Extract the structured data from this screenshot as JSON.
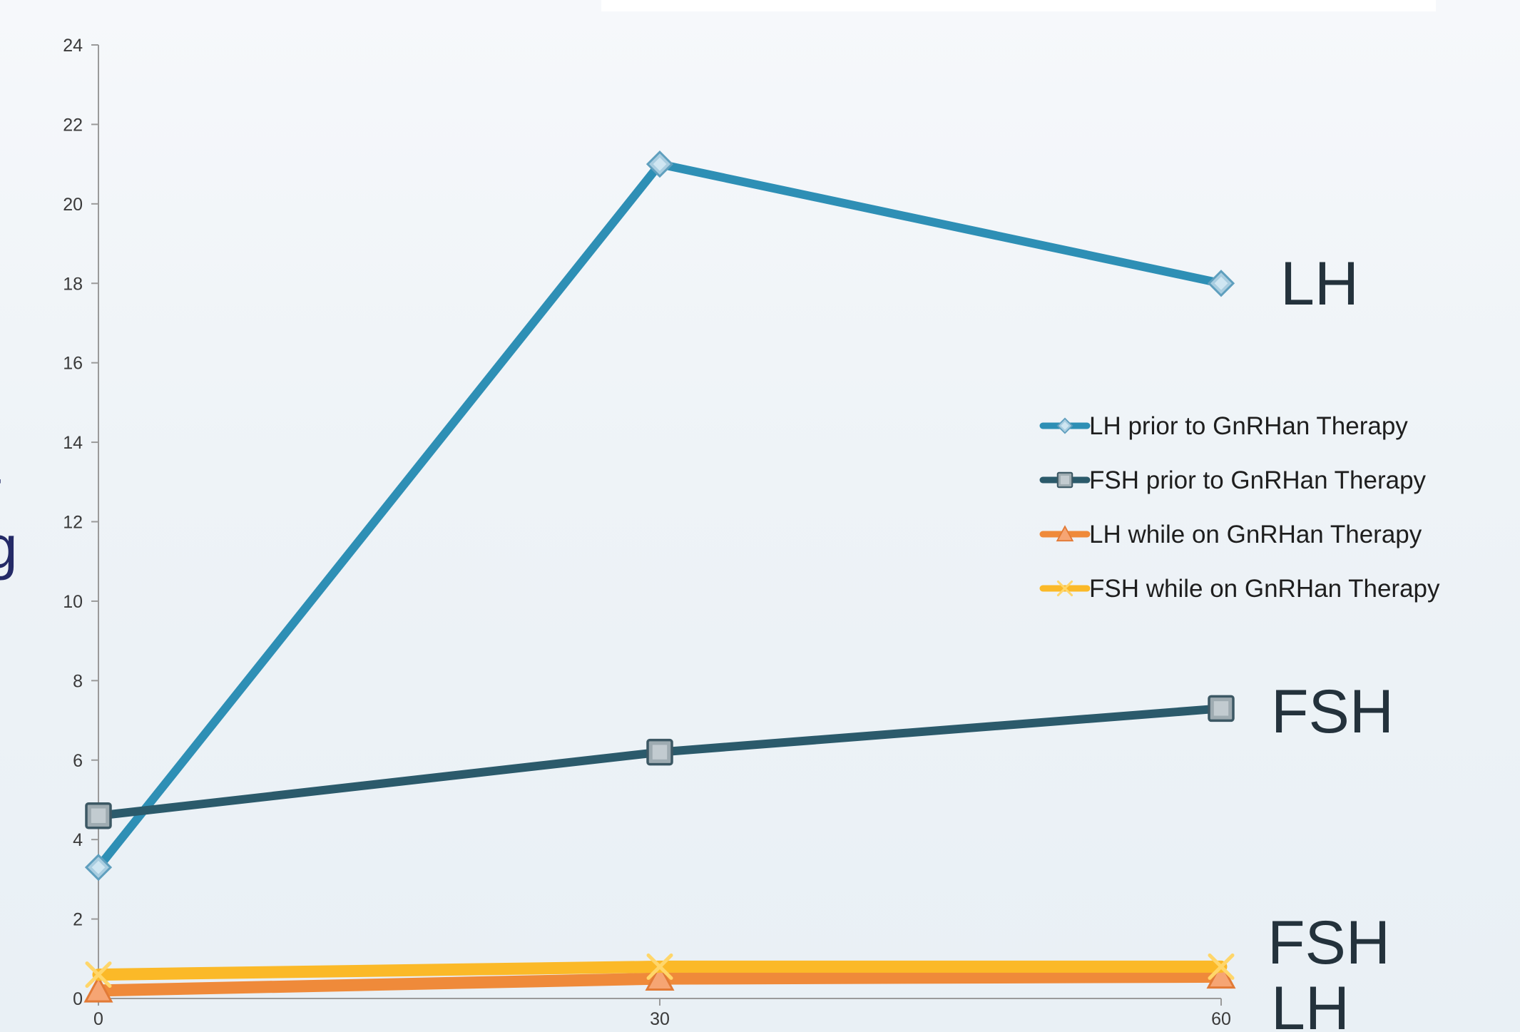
{
  "slide": {
    "partial_lines": [
      "t",
      "g"
    ]
  },
  "chart_data": {
    "type": "line",
    "x": [
      0,
      30,
      60
    ],
    "xlim": [
      0,
      60
    ],
    "ylim": [
      0,
      24
    ],
    "y_ticks": [
      0,
      2,
      4,
      6,
      8,
      10,
      12,
      14,
      16,
      18,
      20,
      22,
      24
    ],
    "x_ticks": [
      0,
      30,
      60
    ],
    "grid": false,
    "legend_position": "right",
    "series": [
      {
        "name": "LH prior to GnRHan Therapy",
        "values": [
          3.3,
          21,
          18
        ],
        "color": "#2e8fb5",
        "marker": "diamond"
      },
      {
        "name": "FSH prior to GnRHan Therapy",
        "values": [
          4.6,
          6.2,
          7.3
        ],
        "color": "#2b5a6b",
        "marker": "square"
      },
      {
        "name": "LH while on GnRHan Therapy",
        "values": [
          0.2,
          0.5,
          0.55
        ],
        "color": "#ef8a3a",
        "marker": "triangle"
      },
      {
        "name": "FSH while on GnRHan Therapy",
        "values": [
          0.6,
          0.8,
          0.8
        ],
        "color": "#fbb928",
        "marker": "x"
      }
    ],
    "annotations": [
      {
        "text": "LH",
        "y": 18
      },
      {
        "text": "FSH",
        "y": 7.3
      },
      {
        "text": "FSH",
        "y": 1.5
      },
      {
        "text": "LH",
        "y": 0
      }
    ]
  }
}
